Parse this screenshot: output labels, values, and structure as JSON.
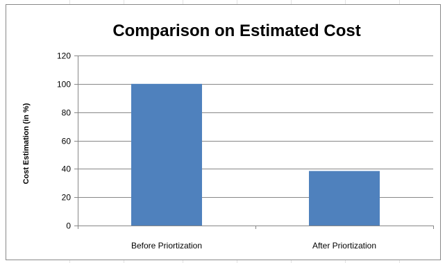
{
  "chart_data": {
    "type": "bar",
    "title": "Comparison on Estimated Cost",
    "xlabel": "",
    "ylabel": "Cost Estimation (in %)",
    "categories": [
      "Before Priortization",
      "After Priortization"
    ],
    "values": [
      100,
      38.5
    ],
    "ylim": [
      0,
      120
    ],
    "yticks": [
      "0",
      "20",
      "40",
      "60",
      "80",
      "100",
      "120"
    ],
    "grid": true,
    "legend": "none",
    "bar_color": "#4F81BD",
    "gridline_color": "#868686"
  }
}
